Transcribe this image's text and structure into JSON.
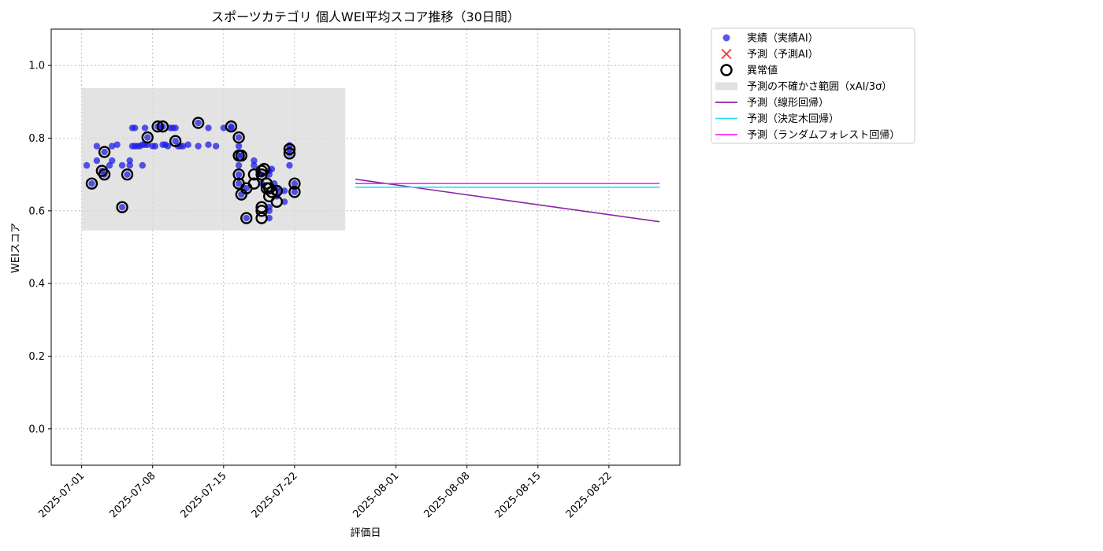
{
  "chart_data": {
    "type": "scatter",
    "title": "スポーツカテゴリ 個人WEI平均スコア推移（30日間）",
    "xlabel": "評価日",
    "ylabel": "WEIスコア",
    "xlim": [
      "2025-06-28",
      "2025-08-29"
    ],
    "ylim": [
      -0.1,
      1.1
    ],
    "x_ticks": [
      "2025-07-01",
      "2025-07-08",
      "2025-07-15",
      "2025-07-22",
      "2025-08-01",
      "2025-08-08",
      "2025-08-15",
      "2025-08-22"
    ],
    "y_ticks": [
      0.0,
      0.2,
      0.4,
      0.6,
      0.8,
      1.0
    ],
    "y_tick_labels": [
      "0.0",
      "0.2",
      "0.4",
      "0.6",
      "0.8",
      "1.0"
    ],
    "grid": true,
    "legend_position": "outside-right-top",
    "colors": {
      "actual": "#1f1fe6",
      "predicted": "#ff3333",
      "anomaly": "#000000",
      "uncertainty": "#d9d9d9",
      "linear": "#8e24aa",
      "tree": "#22e5ee",
      "forest": "#ff22ff"
    },
    "legend": [
      {
        "key": "actual",
        "label": "実績（実績AI）"
      },
      {
        "key": "predicted",
        "label": "予測（予測AI）"
      },
      {
        "key": "anomaly",
        "label": "異常値"
      },
      {
        "key": "uncertainty",
        "label": "予測の不確かさ範囲（xAI/3σ）"
      },
      {
        "key": "linear",
        "label": "予測（線形回帰）"
      },
      {
        "key": "tree",
        "label": "予測（決定木回帰）"
      },
      {
        "key": "forest",
        "label": "予測（ランダムフォレスト回帰）"
      }
    ],
    "uncertainty_band": {
      "x": [
        "2025-07-01",
        "2025-07-27"
      ],
      "y": [
        0.546,
        0.938
      ]
    },
    "actual_points": [
      [
        "2025-07-01T12:00",
        0.725
      ],
      [
        "2025-07-02",
        0.675
      ],
      [
        "2025-07-02T12:00",
        0.738
      ],
      [
        "2025-07-02T12:00",
        0.778
      ],
      [
        "2025-07-03",
        0.71
      ],
      [
        "2025-07-03T06:00",
        0.762
      ],
      [
        "2025-07-03T06:00",
        0.7
      ],
      [
        "2025-07-03T18:00",
        0.725
      ],
      [
        "2025-07-04",
        0.738
      ],
      [
        "2025-07-04",
        0.778
      ],
      [
        "2025-07-04T12:00",
        0.782
      ],
      [
        "2025-07-05",
        0.61
      ],
      [
        "2025-07-05",
        0.725
      ],
      [
        "2025-07-05T12:00",
        0.7
      ],
      [
        "2025-07-05T18:00",
        0.738
      ],
      [
        "2025-07-05T18:00",
        0.725
      ],
      [
        "2025-07-06",
        0.778
      ],
      [
        "2025-07-06",
        0.828
      ],
      [
        "2025-07-06T06:00",
        0.828
      ],
      [
        "2025-07-06T06:00",
        0.778
      ],
      [
        "2025-07-06T12:00",
        0.778
      ],
      [
        "2025-07-06T18:00",
        0.778
      ],
      [
        "2025-07-07",
        0.782
      ],
      [
        "2025-07-07",
        0.725
      ],
      [
        "2025-07-07T06:00",
        0.782
      ],
      [
        "2025-07-07T06:00",
        0.828
      ],
      [
        "2025-07-07T12:00",
        0.802
      ],
      [
        "2025-07-07T12:00",
        0.782
      ],
      [
        "2025-07-08",
        0.778
      ],
      [
        "2025-07-08T06:00",
        0.778
      ],
      [
        "2025-07-08T12:00",
        0.832
      ],
      [
        "2025-07-08T18:00",
        0.828
      ],
      [
        "2025-07-09",
        0.782
      ],
      [
        "2025-07-09T06:00",
        0.782
      ],
      [
        "2025-07-09",
        0.832
      ],
      [
        "2025-07-09T12:00",
        0.778
      ],
      [
        "2025-07-09T18:00",
        0.828
      ],
      [
        "2025-07-10",
        0.828
      ],
      [
        "2025-07-10T06:00",
        0.792
      ],
      [
        "2025-07-10T06:00",
        0.828
      ],
      [
        "2025-07-10T12:00",
        0.778
      ],
      [
        "2025-07-10T18:00",
        0.778
      ],
      [
        "2025-07-11",
        0.778
      ],
      [
        "2025-07-11T12:00",
        0.782
      ],
      [
        "2025-07-12T12:00",
        0.842
      ],
      [
        "2025-07-12T12:00",
        0.778
      ],
      [
        "2025-07-13T12:00",
        0.828
      ],
      [
        "2025-07-13T12:00",
        0.782
      ],
      [
        "2025-07-14T06:00",
        0.778
      ],
      [
        "2025-07-15",
        0.828
      ],
      [
        "2025-07-15T18:00",
        0.832
      ],
      [
        "2025-07-15T18:00",
        0.828
      ],
      [
        "2025-07-16T12:00",
        0.802
      ],
      [
        "2025-07-16T12:00",
        0.778
      ],
      [
        "2025-07-16T12:00",
        0.752
      ],
      [
        "2025-07-16T12:00",
        0.725
      ],
      [
        "2025-07-16T12:00",
        0.7
      ],
      [
        "2025-07-16T12:00",
        0.675
      ],
      [
        "2025-07-16T18:00",
        0.752
      ],
      [
        "2025-07-16T18:00",
        0.645
      ],
      [
        "2025-07-17T06:00",
        0.58
      ],
      [
        "2025-07-17T06:00",
        0.662
      ],
      [
        "2025-07-18",
        0.738
      ],
      [
        "2025-07-18",
        0.725
      ],
      [
        "2025-07-18T18:00",
        0.7
      ],
      [
        "2025-07-18T18:00",
        0.675
      ],
      [
        "2025-07-19T12:00",
        0.58
      ],
      [
        "2025-07-19T12:00",
        0.61
      ],
      [
        "2025-07-19T12:00",
        0.6
      ],
      [
        "2025-07-19T12:00",
        0.71
      ],
      [
        "2025-07-19T12:00",
        0.7
      ],
      [
        "2025-07-19T18:00",
        0.715
      ],
      [
        "2025-07-20",
        0.675
      ],
      [
        "2025-07-20",
        0.662
      ],
      [
        "2025-07-20T06:00",
        0.64
      ],
      [
        "2025-07-20T06:00",
        0.662
      ],
      [
        "2025-07-20T12:00",
        0.652
      ],
      [
        "2025-07-21",
        0.625
      ],
      [
        "2025-07-21",
        0.655
      ],
      [
        "2025-07-21T12:00",
        0.725
      ],
      [
        "2025-07-21T12:00",
        0.77
      ],
      [
        "2025-07-21T12:00",
        0.78
      ],
      [
        "2025-07-21T12:00",
        0.758
      ],
      [
        "2025-07-22",
        0.675
      ],
      [
        "2025-07-22",
        0.652
      ]
    ],
    "anomaly_points": [
      [
        "2025-07-02",
        0.675
      ],
      [
        "2025-07-03",
        0.71
      ],
      [
        "2025-07-03T06:00",
        0.762
      ],
      [
        "2025-07-03T06:00",
        0.7
      ],
      [
        "2025-07-05",
        0.61
      ],
      [
        "2025-07-05T12:00",
        0.7
      ],
      [
        "2025-07-07T12:00",
        0.802
      ],
      [
        "2025-07-08T12:00",
        0.832
      ],
      [
        "2025-07-09",
        0.832
      ],
      [
        "2025-07-10T06:00",
        0.792
      ],
      [
        "2025-07-12T12:00",
        0.842
      ],
      [
        "2025-07-15T18:00",
        0.832
      ],
      [
        "2025-07-16T12:00",
        0.802
      ],
      [
        "2025-07-16T12:00",
        0.752
      ],
      [
        "2025-07-16T12:00",
        0.7
      ],
      [
        "2025-07-16T12:00",
        0.675
      ],
      [
        "2025-07-16T18:00",
        0.752
      ],
      [
        "2025-07-16T18:00",
        0.645
      ],
      [
        "2025-07-17T06:00",
        0.58
      ],
      [
        "2025-07-17T06:00",
        0.662
      ],
      [
        "2025-07-18",
        0.7
      ],
      [
        "2025-07-18",
        0.675
      ],
      [
        "2025-07-18T18:00",
        0.58
      ],
      [
        "2025-07-18T18:00",
        0.61
      ],
      [
        "2025-07-18T18:00",
        0.6
      ],
      [
        "2025-07-18T18:00",
        0.71
      ],
      [
        "2025-07-18T18:00",
        0.7
      ],
      [
        "2025-07-19",
        0.715
      ],
      [
        "2025-07-19T06:00",
        0.675
      ],
      [
        "2025-07-19T06:00",
        0.662
      ],
      [
        "2025-07-19T12:00",
        0.64
      ],
      [
        "2025-07-19T12:00",
        0.662
      ],
      [
        "2025-07-19T18:00",
        0.652
      ],
      [
        "2025-07-20T06:00",
        0.625
      ],
      [
        "2025-07-20T06:00",
        0.655
      ],
      [
        "2025-07-21T12:00",
        0.77
      ],
      [
        "2025-07-21T12:00",
        0.758
      ],
      [
        "2025-07-22",
        0.675
      ],
      [
        "2025-07-22",
        0.652
      ]
    ],
    "series": [
      {
        "key": "linear",
        "x": [
          "2025-07-28",
          "2025-08-27"
        ],
        "y": [
          0.687,
          0.57
        ]
      },
      {
        "key": "tree",
        "x": [
          "2025-07-28",
          "2025-08-27"
        ],
        "y": [
          0.665,
          0.665
        ]
      },
      {
        "key": "forest",
        "x": [
          "2025-07-28",
          "2025-08-27"
        ],
        "y": [
          0.675,
          0.675
        ]
      }
    ]
  }
}
